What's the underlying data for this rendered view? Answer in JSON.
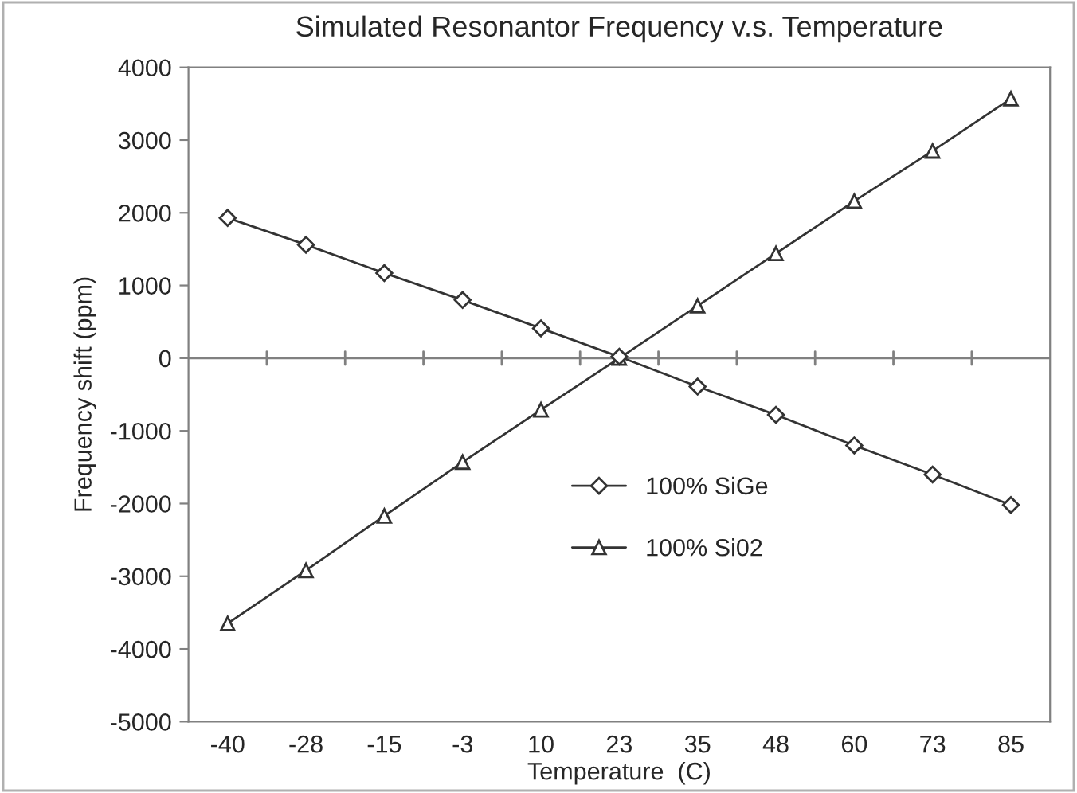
{
  "chart_data": {
    "type": "line",
    "title": "Simulated Resonantor Frequency v.s. Temperature",
    "xlabel": "Temperature  (C)",
    "ylabel": "Frequency shift (ppm)",
    "categories": [
      "-40",
      "-28",
      "-15",
      "-3",
      "10",
      "23",
      "35",
      "48",
      "60",
      "73",
      "85"
    ],
    "series": [
      {
        "name": "100% SiGe",
        "color": "#333333",
        "marker": "diamond",
        "values": [
          1930,
          1560,
          1170,
          800,
          410,
          20,
          -390,
          -780,
          -1200,
          -1600,
          -2020
        ]
      },
      {
        "name": "100% Si02",
        "color": "#333333",
        "marker": "triangle",
        "values": [
          -3650,
          -2920,
          -2170,
          -1430,
          -710,
          0,
          720,
          1440,
          2160,
          2850,
          3570
        ]
      }
    ],
    "ylim": [
      -5000,
      4000
    ],
    "yticks": [
      -5000,
      -4000,
      -3000,
      -2000,
      -1000,
      0,
      1000,
      2000,
      3000,
      4000
    ],
    "ref_lines": [
      {
        "axis": "y",
        "value": 0,
        "color": "#808080"
      }
    ],
    "grid": false,
    "legend": "center",
    "line_style": "solid"
  }
}
